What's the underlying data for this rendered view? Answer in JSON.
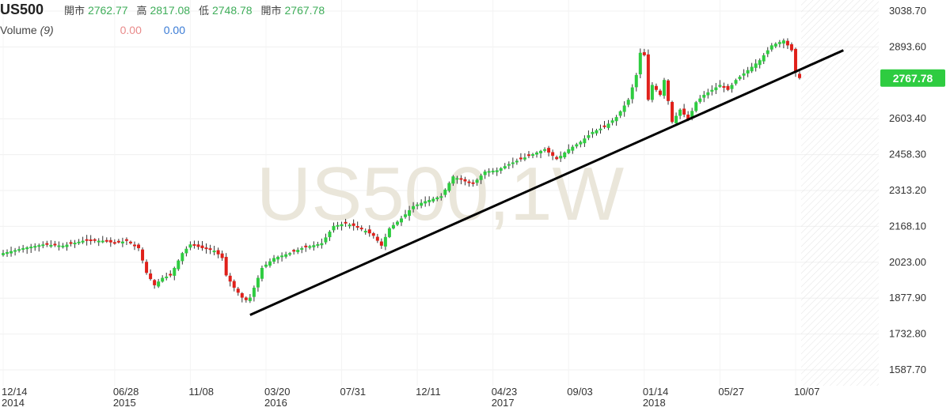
{
  "header": {
    "symbol": "US500",
    "open_label": "開市",
    "open_value": "2762.77",
    "high_label": "高",
    "high_value": "2817.08",
    "low_label": "低",
    "low_value": "2748.78",
    "close_label": "開市",
    "close_value": "2767.78"
  },
  "volume": {
    "label": "Volume",
    "period": "(9)",
    "value_a": "0.00",
    "value_b": "0.00"
  },
  "watermark": "US500,1W",
  "price_tag": "2767.78",
  "colors": {
    "up": "#2ecc40",
    "down": "#e0201a",
    "tag": "#2ecc40",
    "watermark": "#eae6da"
  },
  "chart_data": {
    "type": "candlestick",
    "timeframe": "1W",
    "ylim": [
      1587.7,
      3038.7
    ],
    "y_ticks": [
      "3038.70",
      "2893.60",
      "2603.40",
      "2458.30",
      "2313.20",
      "2168.10",
      "2023.00",
      "1877.90",
      "1732.80",
      "1587.70"
    ],
    "x_ticks": [
      {
        "label": "12/14",
        "year": "2014",
        "index": 0
      },
      {
        "label": "06/28",
        "year": "2015",
        "index": 28
      },
      {
        "label": "11/08",
        "year": "",
        "index": 47
      },
      {
        "label": "03/20",
        "year": "2016",
        "index": 66
      },
      {
        "label": "07/31",
        "year": "",
        "index": 85
      },
      {
        "label": "12/11",
        "year": "",
        "index": 104
      },
      {
        "label": "04/23",
        "year": "2017",
        "index": 123
      },
      {
        "label": "09/03",
        "year": "",
        "index": 142
      },
      {
        "label": "01/14",
        "year": "2018",
        "index": 161
      },
      {
        "label": "05/27",
        "year": "",
        "index": 180
      },
      {
        "label": "10/07",
        "year": "",
        "index": 199
      }
    ],
    "anchors": [
      [
        0,
        2060
      ],
      [
        5,
        2080
      ],
      [
        10,
        2095
      ],
      [
        15,
        2090
      ],
      [
        20,
        2110
      ],
      [
        25,
        2110
      ],
      [
        28,
        2100
      ],
      [
        31,
        2110
      ],
      [
        34,
        2080
      ],
      [
        36,
        1980
      ],
      [
        38,
        1930
      ],
      [
        40,
        1960
      ],
      [
        42,
        1970
      ],
      [
        45,
        2060
      ],
      [
        47,
        2095
      ],
      [
        50,
        2080
      ],
      [
        53,
        2070
      ],
      [
        55,
        2040
      ],
      [
        56,
        1970
      ],
      [
        58,
        1920
      ],
      [
        60,
        1880
      ],
      [
        61,
        1870
      ],
      [
        62,
        1880
      ],
      [
        65,
        2000
      ],
      [
        68,
        2040
      ],
      [
        72,
        2060
      ],
      [
        75,
        2080
      ],
      [
        80,
        2100
      ],
      [
        83,
        2170
      ],
      [
        86,
        2180
      ],
      [
        88,
        2170
      ],
      [
        91,
        2150
      ],
      [
        93,
        2130
      ],
      [
        95,
        2090
      ],
      [
        97,
        2160
      ],
      [
        100,
        2200
      ],
      [
        103,
        2250
      ],
      [
        106,
        2270
      ],
      [
        110,
        2290
      ],
      [
        113,
        2370
      ],
      [
        116,
        2350
      ],
      [
        118,
        2340
      ],
      [
        121,
        2390
      ],
      [
        124,
        2395
      ],
      [
        127,
        2420
      ],
      [
        130,
        2440
      ],
      [
        133,
        2460
      ],
      [
        136,
        2480
      ],
      [
        139,
        2440
      ],
      [
        142,
        2480
      ],
      [
        145,
        2510
      ],
      [
        148,
        2550
      ],
      [
        151,
        2570
      ],
      [
        154,
        2610
      ],
      [
        157,
        2680
      ],
      [
        159,
        2780
      ],
      [
        160,
        2870
      ],
      [
        161,
        2860
      ],
      [
        162,
        2680
      ],
      [
        163,
        2740
      ],
      [
        165,
        2700
      ],
      [
        166,
        2760
      ],
      [
        168,
        2590
      ],
      [
        170,
        2640
      ],
      [
        172,
        2600
      ],
      [
        174,
        2670
      ],
      [
        176,
        2700
      ],
      [
        178,
        2720
      ],
      [
        180,
        2740
      ],
      [
        182,
        2720
      ],
      [
        184,
        2760
      ],
      [
        187,
        2800
      ],
      [
        190,
        2840
      ],
      [
        193,
        2900
      ],
      [
        196,
        2920
      ],
      [
        197,
        2900
      ],
      [
        198,
        2880
      ],
      [
        199,
        2790
      ],
      [
        200,
        2767.78
      ]
    ],
    "trendline": [
      [
        62,
        1810
      ],
      [
        211,
        2880
      ]
    ],
    "last_price": 2767.78
  }
}
